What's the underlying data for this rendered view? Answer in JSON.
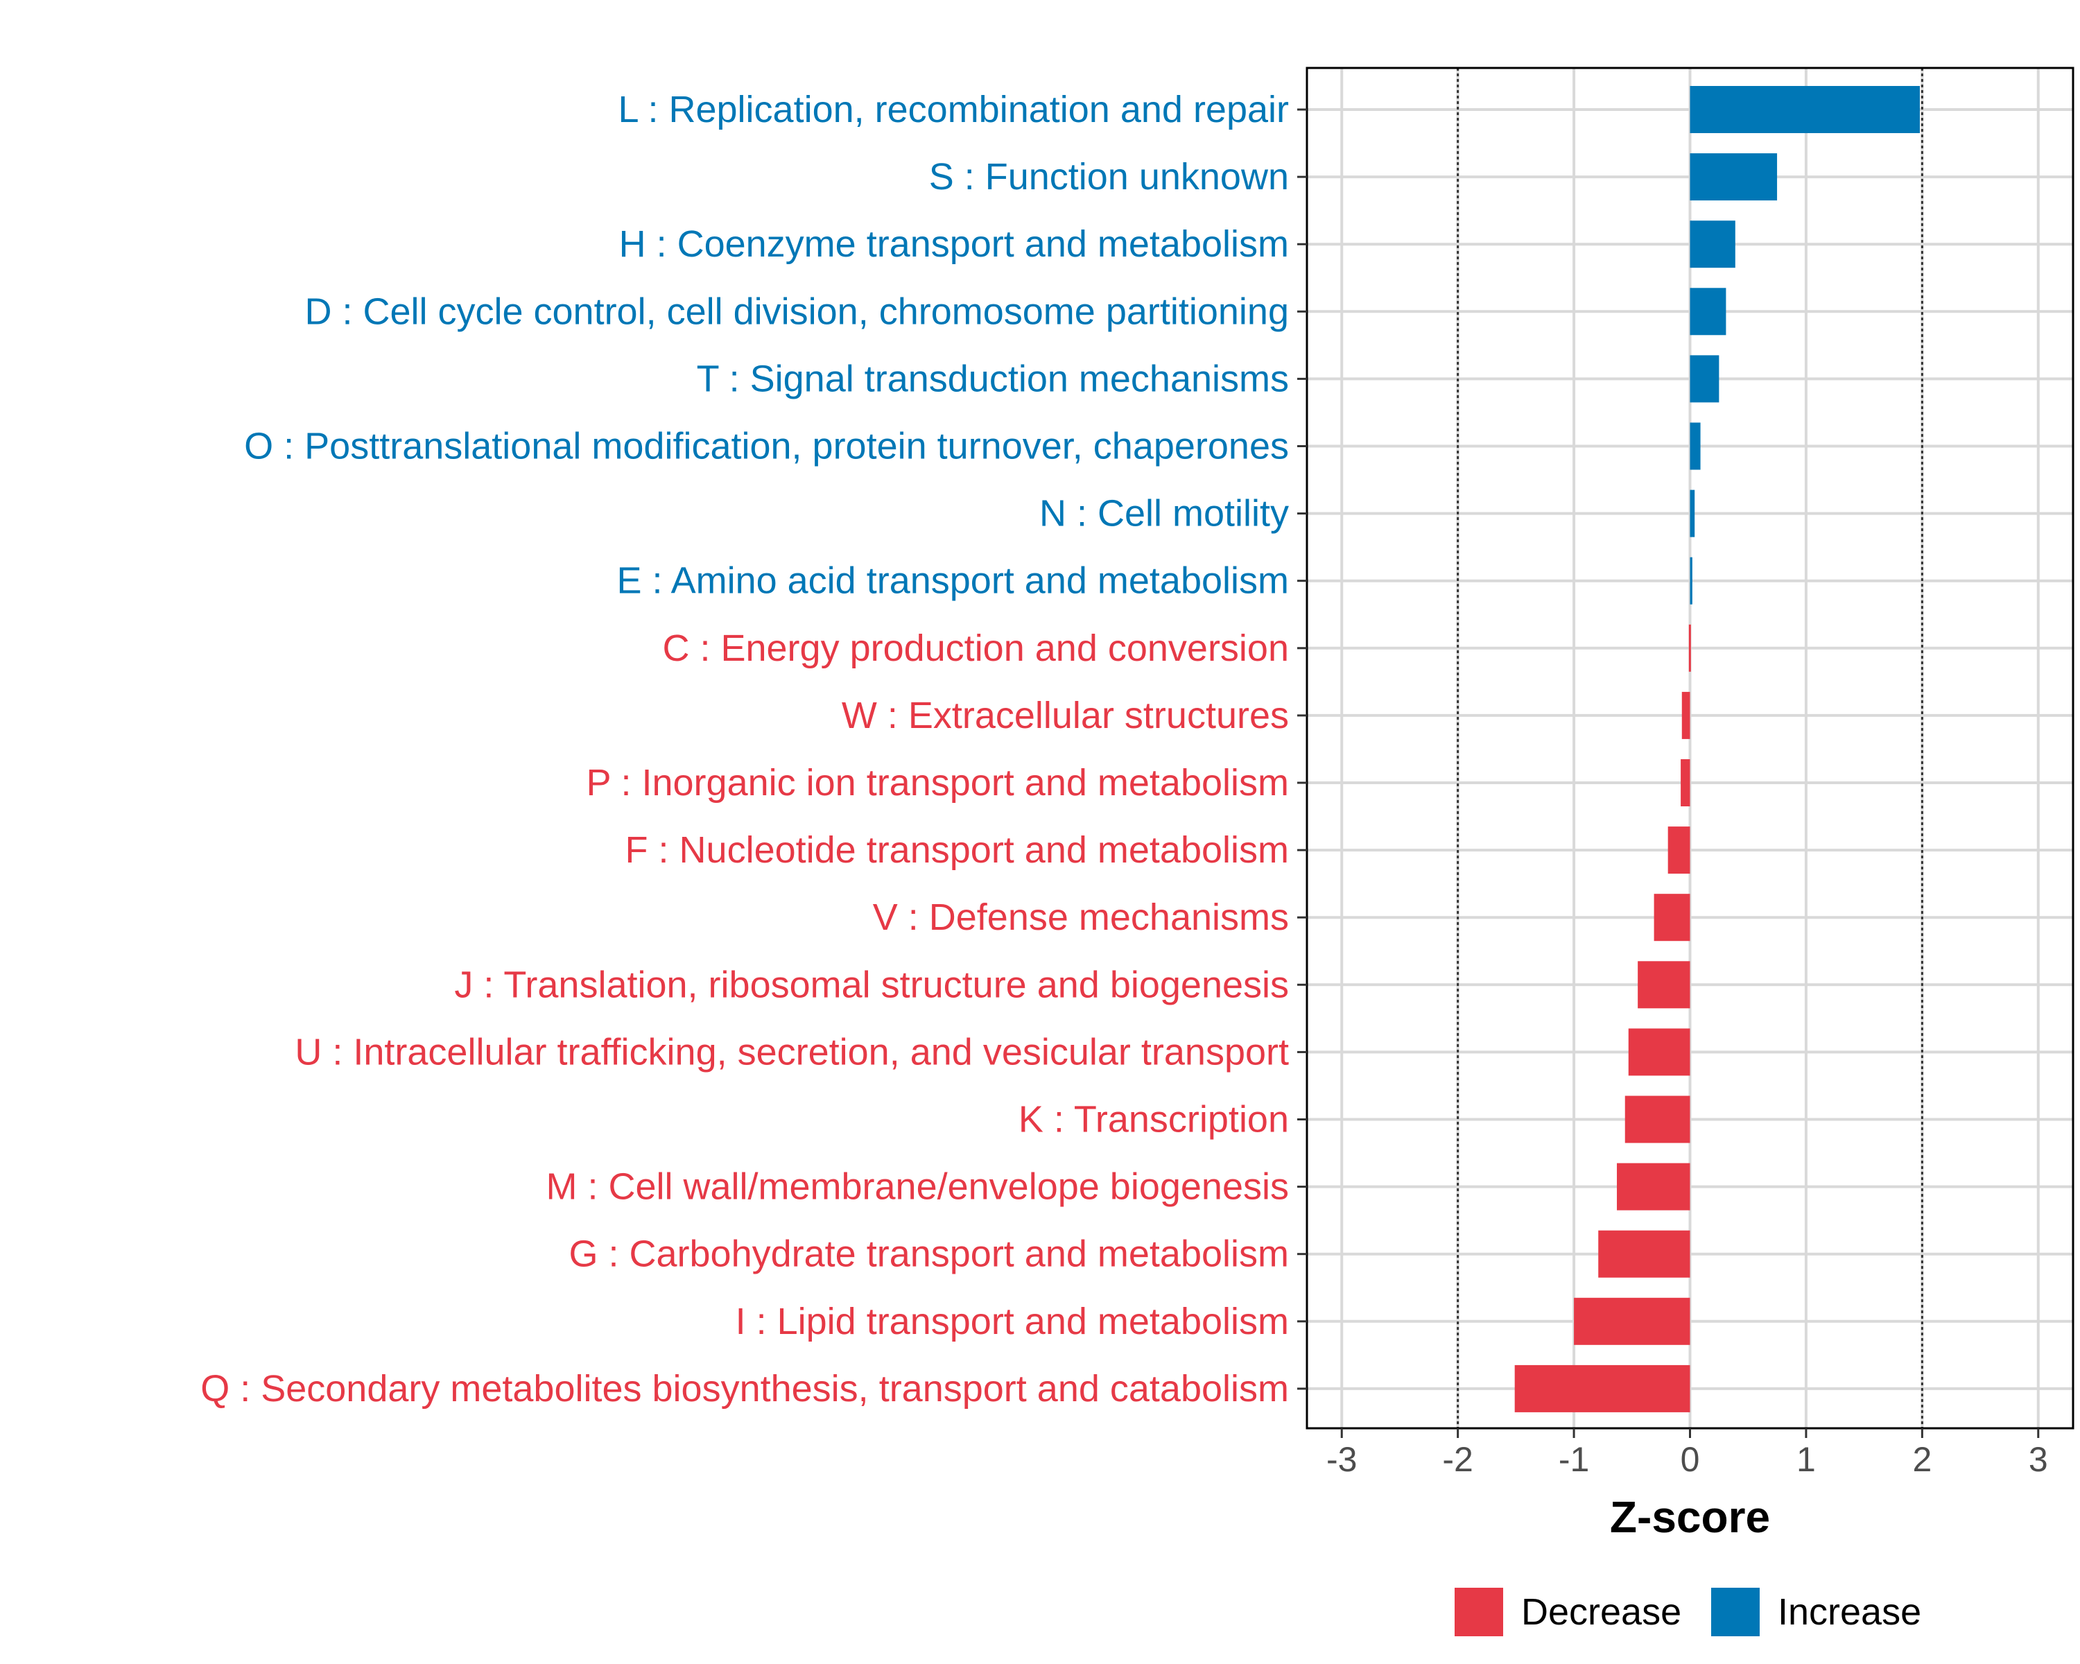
{
  "chart_data": {
    "type": "bar",
    "orientation": "horizontal",
    "title": "",
    "xlabel": "Z-score",
    "ylabel": "",
    "xlim": [
      -3.3,
      3.3
    ],
    "xticks": [
      "-3",
      "-2",
      "-1",
      "0",
      "1",
      "2",
      "3"
    ],
    "xtick_values": [
      -3,
      -2,
      -1,
      0,
      1,
      2,
      3
    ],
    "threshold_lines": [
      -2,
      2
    ],
    "grid": true,
    "categories": [
      "L : Replication, recombination and repair",
      "S : Function unknown",
      "H : Coenzyme transport and metabolism",
      "D : Cell cycle control, cell division, chromosome partitioning",
      "T : Signal transduction mechanisms",
      "O : Posttranslational modification, protein turnover, chaperones",
      "N : Cell motility",
      "E : Amino acid transport and metabolism",
      "C : Energy production and conversion",
      "W : Extracellular structures",
      "P : Inorganic ion transport and metabolism",
      "F : Nucleotide transport and metabolism",
      "V : Defense mechanisms",
      "J : Translation, ribosomal structure and biogenesis",
      "U : Intracellular trafficking, secretion, and vesicular transport",
      "K : Transcription",
      "M : Cell wall/membrane/envelope biogenesis",
      "G : Carbohydrate transport and metabolism",
      "I : Lipid transport and metabolism",
      "Q : Secondary metabolites biosynthesis, transport and catabolism"
    ],
    "values": [
      1.98,
      0.75,
      0.39,
      0.31,
      0.25,
      0.09,
      0.04,
      0.02,
      -0.01,
      -0.07,
      -0.08,
      -0.19,
      -0.31,
      -0.45,
      -0.53,
      -0.56,
      -0.63,
      -0.79,
      -1.0,
      -1.51
    ],
    "groups": [
      "Increase",
      "Increase",
      "Increase",
      "Increase",
      "Increase",
      "Increase",
      "Increase",
      "Increase",
      "Decrease",
      "Decrease",
      "Decrease",
      "Decrease",
      "Decrease",
      "Decrease",
      "Decrease",
      "Decrease",
      "Decrease",
      "Decrease",
      "Decrease",
      "Decrease"
    ],
    "legend": {
      "position": "bottom",
      "entries": [
        {
          "label": "Decrease",
          "color": "#e63946"
        },
        {
          "label": "Increase",
          "color": "#0077b6"
        }
      ]
    },
    "colors": {
      "Increase": "#0077b6",
      "Decrease": "#e63946"
    }
  }
}
